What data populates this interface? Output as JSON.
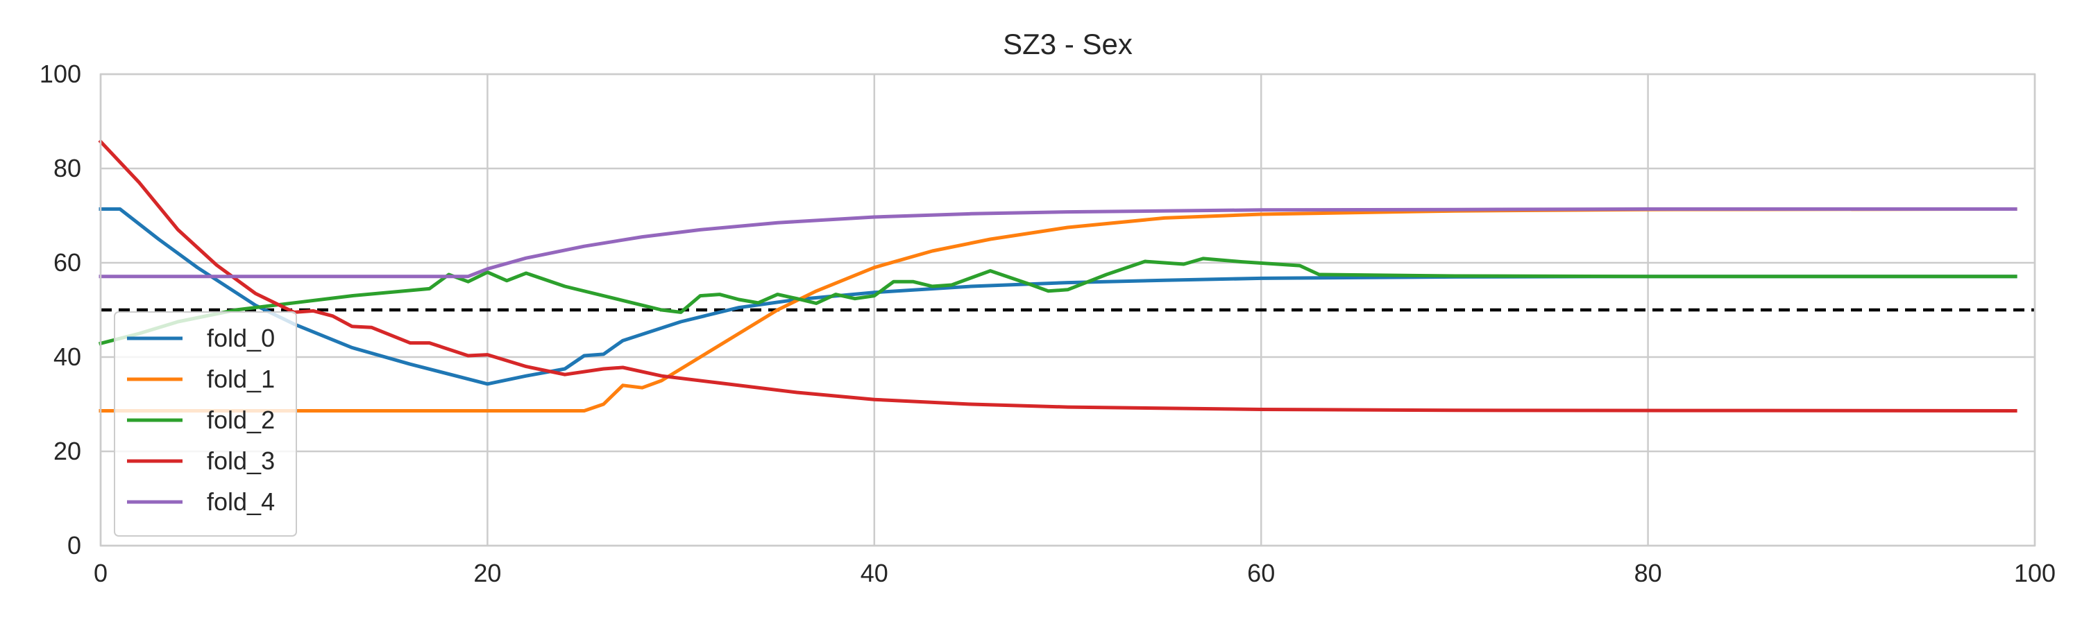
{
  "chart_data": {
    "type": "line",
    "title": "SZ3 - Sex",
    "xlabel": "",
    "ylabel": "",
    "xlim": [
      0,
      100
    ],
    "ylim": [
      0,
      100
    ],
    "xticks": [
      0,
      20,
      40,
      60,
      80,
      100
    ],
    "yticks": [
      0,
      20,
      40,
      60,
      80,
      100
    ],
    "grid": true,
    "legend_position": "lower-left",
    "reference_line": {
      "y": 50,
      "style": "dashed",
      "color": "#000000"
    },
    "series": [
      {
        "name": "fold_0",
        "color": "#1f77b4",
        "points": [
          [
            0,
            71.4
          ],
          [
            1,
            71.4
          ],
          [
            3,
            65
          ],
          [
            5,
            59
          ],
          [
            8,
            51
          ],
          [
            10,
            47
          ],
          [
            13,
            42
          ],
          [
            16,
            38.5
          ],
          [
            20,
            34.3
          ],
          [
            22,
            36
          ],
          [
            24,
            37.5
          ],
          [
            25,
            40.3
          ],
          [
            26,
            40.6
          ],
          [
            27,
            43.5
          ],
          [
            30,
            47.5
          ],
          [
            33,
            50.5
          ],
          [
            36,
            52.2
          ],
          [
            40,
            53.7
          ],
          [
            45,
            55
          ],
          [
            50,
            55.8
          ],
          [
            55,
            56.3
          ],
          [
            60,
            56.7
          ],
          [
            70,
            57
          ],
          [
            80,
            57.1
          ],
          [
            99,
            57.1
          ]
        ]
      },
      {
        "name": "fold_1",
        "color": "#ff7f0e",
        "points": [
          [
            0,
            28.6
          ],
          [
            25,
            28.6
          ],
          [
            26,
            30
          ],
          [
            27,
            34
          ],
          [
            28,
            33.5
          ],
          [
            29,
            35
          ],
          [
            31,
            40
          ],
          [
            33,
            45
          ],
          [
            35,
            50
          ],
          [
            37,
            54
          ],
          [
            40,
            59
          ],
          [
            43,
            62.5
          ],
          [
            46,
            65
          ],
          [
            50,
            67.5
          ],
          [
            55,
            69.5
          ],
          [
            60,
            70.3
          ],
          [
            70,
            71
          ],
          [
            80,
            71.3
          ],
          [
            99,
            71.4
          ]
        ]
      },
      {
        "name": "fold_2",
        "color": "#2ca02c",
        "points": [
          [
            0,
            42.9
          ],
          [
            2,
            45
          ],
          [
            4,
            47.5
          ],
          [
            7,
            50
          ],
          [
            10,
            51.5
          ],
          [
            13,
            53
          ],
          [
            17,
            54.5
          ],
          [
            18,
            57.5
          ],
          [
            19,
            56
          ],
          [
            20,
            58
          ],
          [
            21,
            56.2
          ],
          [
            22,
            57.8
          ],
          [
            24,
            55
          ],
          [
            27,
            52
          ],
          [
            29,
            50
          ],
          [
            30,
            49.5
          ],
          [
            31,
            53
          ],
          [
            32,
            53.3
          ],
          [
            33,
            52.2
          ],
          [
            34,
            51.5
          ],
          [
            35,
            53.3
          ],
          [
            36,
            52.4
          ],
          [
            37,
            51.4
          ],
          [
            38,
            53.3
          ],
          [
            39,
            52.4
          ],
          [
            40,
            53
          ],
          [
            41,
            56
          ],
          [
            42,
            56
          ],
          [
            43,
            55
          ],
          [
            44,
            55.3
          ],
          [
            46,
            58.3
          ],
          [
            48,
            55.5
          ],
          [
            49,
            54
          ],
          [
            50,
            54.3
          ],
          [
            52,
            57.5
          ],
          [
            54,
            60.3
          ],
          [
            56,
            59.7
          ],
          [
            57,
            60.9
          ],
          [
            59,
            60.2
          ],
          [
            62,
            59.4
          ],
          [
            63,
            57.5
          ],
          [
            70,
            57.2
          ],
          [
            80,
            57.1
          ],
          [
            99,
            57.1
          ]
        ]
      },
      {
        "name": "fold_3",
        "color": "#d62728",
        "points": [
          [
            0,
            85.7
          ],
          [
            2,
            77
          ],
          [
            4,
            67
          ],
          [
            6,
            59.5
          ],
          [
            8,
            53.5
          ],
          [
            10,
            49.5
          ],
          [
            11,
            49.8
          ],
          [
            12,
            48.7
          ],
          [
            13,
            46.5
          ],
          [
            14,
            46.3
          ],
          [
            16,
            43
          ],
          [
            17,
            43
          ],
          [
            19,
            40.3
          ],
          [
            20,
            40.5
          ],
          [
            22,
            38
          ],
          [
            24,
            36.3
          ],
          [
            26,
            37.5
          ],
          [
            27,
            37.8
          ],
          [
            29,
            36
          ],
          [
            32,
            34.5
          ],
          [
            36,
            32.5
          ],
          [
            40,
            31
          ],
          [
            45,
            30
          ],
          [
            50,
            29.4
          ],
          [
            60,
            28.9
          ],
          [
            70,
            28.7
          ],
          [
            99,
            28.6
          ]
        ]
      },
      {
        "name": "fold_4",
        "color": "#9467bd",
        "points": [
          [
            0,
            57.1
          ],
          [
            19,
            57.1
          ],
          [
            20,
            58.7
          ],
          [
            22,
            61
          ],
          [
            25,
            63.5
          ],
          [
            28,
            65.5
          ],
          [
            31,
            67
          ],
          [
            35,
            68.5
          ],
          [
            40,
            69.7
          ],
          [
            45,
            70.4
          ],
          [
            50,
            70.8
          ],
          [
            60,
            71.2
          ],
          [
            70,
            71.3
          ],
          [
            80,
            71.4
          ],
          [
            99,
            71.4
          ]
        ]
      }
    ]
  }
}
